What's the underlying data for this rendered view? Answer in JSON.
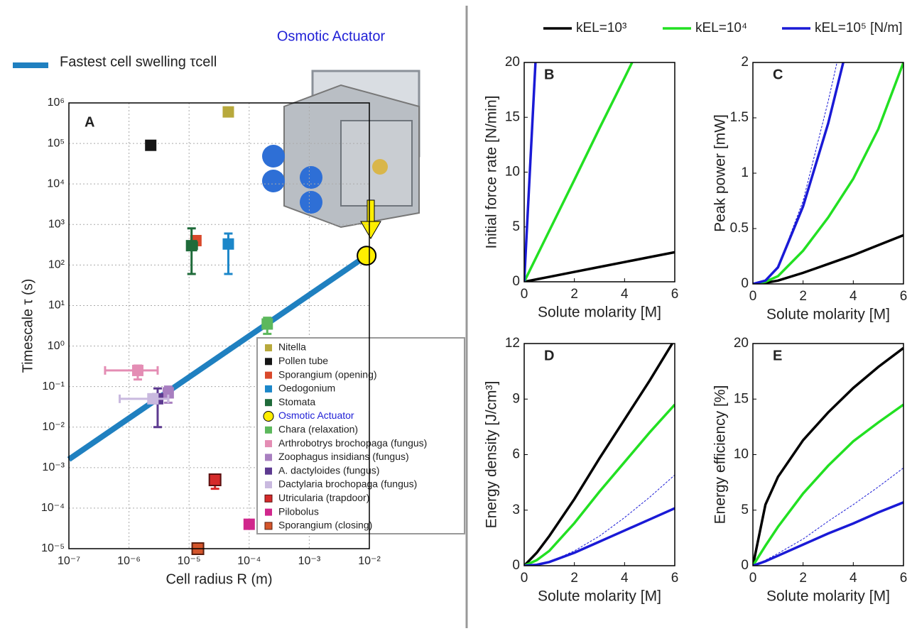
{
  "chart_data": [
    {
      "type": "scatter",
      "title": "A",
      "annotation": "Osmotic Actuator",
      "annotation_color": "#1f1fd6",
      "xlabel": "Cell radius R (m)",
      "ylabel": "Timescale τ (s)",
      "xscale": "log",
      "yscale": "log",
      "grid": true,
      "xlim": [
        1e-07,
        0.01
      ],
      "ylim": [
        1e-05,
        1000000.0
      ],
      "xticks": [
        {
          "value": 1e-07,
          "label": "10⁻⁷"
        },
        {
          "value": 1e-06,
          "label": "10⁻⁶"
        },
        {
          "value": 1e-05,
          "label": "10⁻⁵"
        },
        {
          "value": 0.0001,
          "label": "10⁻⁴"
        },
        {
          "value": 0.001,
          "label": "10⁻³"
        },
        {
          "value": 0.01,
          "label": "10⁻²"
        }
      ],
      "yticks": [
        {
          "value": 1e-05,
          "label": "10⁻⁵"
        },
        {
          "value": 0.0001,
          "label": "10⁻⁴"
        },
        {
          "value": 0.001,
          "label": "10⁻³"
        },
        {
          "value": 0.01,
          "label": "10⁻²"
        },
        {
          "value": 0.1,
          "label": "10⁻¹"
        },
        {
          "value": 1,
          "label": "10⁰"
        },
        {
          "value": 10,
          "label": "10¹"
        },
        {
          "value": 100,
          "label": "10²"
        },
        {
          "value": 1000,
          "label": "10³"
        },
        {
          "value": 10000,
          "label": "10⁴"
        },
        {
          "value": 100000,
          "label": "10⁵"
        },
        {
          "value": 1000000,
          "label": "10⁶"
        }
      ],
      "series": [
        {
          "name": "Nitella",
          "color": "#b8a93c",
          "marker": "square",
          "x": [
            4.5e-05
          ],
          "values": [
            600000
          ]
        },
        {
          "name": "Pollen tube",
          "color": "#151515",
          "marker": "square",
          "x": [
            2.3e-06
          ],
          "values": [
            90000
          ]
        },
        {
          "name": "Sporangium (opening)",
          "color": "#d9492b",
          "marker": "square",
          "x": [
            1.3e-05
          ],
          "values": [
            400
          ]
        },
        {
          "name": "Oedogonium",
          "color": "#1c87c9",
          "marker": "square",
          "x": [
            4.5e-05
          ],
          "values": [
            330
          ],
          "y_low": [
            60
          ],
          "y_high": [
            600
          ]
        },
        {
          "name": "Stomata",
          "color": "#1f6b3a",
          "marker": "square",
          "x": [
            1.1e-05
          ],
          "values": [
            300
          ],
          "y_low": [
            60
          ],
          "y_high": [
            800
          ],
          "x_low": [
            9.5e-06
          ],
          "x_high": [
            1.35e-05
          ]
        },
        {
          "name": "Osmotic Actuator",
          "color": "#ffee00",
          "edgecolor": "#000000",
          "text_color": "#1f1fd6",
          "marker": "circle",
          "x": [
            0.009
          ],
          "values": [
            170
          ]
        },
        {
          "name": "Chara (relaxation)",
          "color": "#5cb85c",
          "marker": "square",
          "x": [
            0.0002
          ],
          "values": [
            3.5
          ],
          "y_low": [
            2
          ],
          "y_high": [
            5
          ]
        },
        {
          "name": "Arthrobotrys brochopaga (fungus)",
          "color": "#e48db4",
          "marker": "square",
          "x": [
            1.4e-06
          ],
          "values": [
            0.25
          ],
          "y_low": [
            0.15
          ],
          "y_high": [
            0.33
          ],
          "x_low": [
            4e-07
          ],
          "x_high": [
            3e-06
          ]
        },
        {
          "name": "Zoophagus insidians (fungus)",
          "color": "#a87fc0",
          "marker": "square",
          "x": [
            4.5e-06
          ],
          "values": [
            0.07
          ],
          "y_low": [
            0.04
          ],
          "y_high": [
            0.1
          ]
        },
        {
          "name": "A. dactyloides (fungus)",
          "color": "#5d3a90",
          "marker": "square",
          "x": [
            3e-06
          ],
          "values": [
            0.05
          ],
          "y_low": [
            0.01
          ],
          "y_high": [
            0.09
          ]
        },
        {
          "name": "Dactylaria brochopaga (fungus)",
          "color": "#c9b9df",
          "marker": "square",
          "x": [
            2.5e-06
          ],
          "values": [
            0.05
          ],
          "x_low": [
            7e-07
          ],
          "x_high": [
            4.5e-06
          ]
        },
        {
          "name": "Utricularia (trapdoor)",
          "color": "#d52a2a",
          "edgecolor": "#5a1010",
          "marker": "square",
          "x": [
            2.7e-05
          ],
          "values": [
            0.0005
          ],
          "y_low": [
            0.0003
          ],
          "y_high": [
            0.0006
          ]
        },
        {
          "name": "Pilobolus",
          "color": "#d0278c",
          "marker": "square",
          "x": [
            0.0001
          ],
          "values": [
            4e-05
          ]
        },
        {
          "name": "Sporangium (closing)",
          "color": "#d4552b",
          "edgecolor": "#5a2010",
          "marker": "square",
          "x": [
            1.4e-05
          ],
          "values": [
            1e-05
          ]
        },
        {
          "name": "Fastest cell swelling τcell",
          "color": "#1f80c0",
          "marker": "line",
          "x": [
            1e-07,
            0.009
          ],
          "values": [
            0.0016,
            170
          ]
        }
      ]
    },
    {
      "type": "line",
      "title": "B",
      "legend": "top",
      "xlabel": "Solute molarity [M]",
      "ylabel": "Initial force rate [N/min]",
      "xlim": [
        0,
        6
      ],
      "ylim": [
        0,
        20
      ],
      "xticks": [
        0,
        2,
        4,
        6
      ],
      "yticks": [
        0,
        5,
        10,
        15,
        20
      ],
      "series": [
        {
          "name": "kEL=10³",
          "color": "#000000",
          "x": [
            0,
            1,
            2,
            3,
            4,
            5,
            6
          ],
          "values": [
            0,
            0.45,
            0.9,
            1.35,
            1.8,
            2.25,
            2.7
          ]
        },
        {
          "name": "kEL=10⁴",
          "color": "#22e022",
          "x": [
            0,
            1,
            2,
            3,
            4,
            4.3
          ],
          "values": [
            0,
            4.65,
            9.3,
            14,
            18.6,
            20
          ]
        },
        {
          "name": "kEL=10⁵ [N/m]",
          "color": "#1a1ad6",
          "x": [
            0,
            0.45
          ],
          "values": [
            0,
            20
          ]
        }
      ]
    },
    {
      "type": "line",
      "title": "C",
      "xlabel": "Solute molarity [M]",
      "ylabel": "Peak power [mW]",
      "xlim": [
        0,
        6
      ],
      "ylim": [
        0,
        2
      ],
      "xticks": [
        0,
        2,
        4,
        6
      ],
      "yticks": [
        0,
        0.5,
        1,
        1.5,
        2
      ],
      "series": [
        {
          "color": "#000000",
          "x": [
            0,
            0.5,
            1,
            2,
            3,
            4,
            5,
            6
          ],
          "values": [
            0,
            0.01,
            0.03,
            0.1,
            0.18,
            0.26,
            0.35,
            0.44
          ]
        },
        {
          "color": "#22e022",
          "x": [
            0,
            0.5,
            1,
            2,
            3,
            4,
            5,
            6
          ],
          "values": [
            0,
            0.02,
            0.07,
            0.3,
            0.6,
            0.95,
            1.4,
            2
          ]
        },
        {
          "color": "#1a1ad6",
          "x": [
            0,
            0.5,
            1,
            2,
            3,
            3.6
          ],
          "values": [
            0,
            0.03,
            0.15,
            0.7,
            1.45,
            2
          ]
        },
        {
          "color": "#1a1ad6",
          "dashed": true,
          "x": [
            0,
            0.5,
            1,
            2,
            3,
            3.35
          ],
          "values": [
            0,
            0.03,
            0.15,
            0.75,
            1.65,
            2
          ]
        }
      ]
    },
    {
      "type": "line",
      "title": "D",
      "xlabel": "Solute molarity [M]",
      "ylabel": "Energy density [J/cm³]",
      "xlim": [
        0,
        6
      ],
      "ylim": [
        0,
        12
      ],
      "xticks": [
        0,
        2,
        4,
        6
      ],
      "yticks": [
        0,
        3,
        6,
        9,
        12
      ],
      "series": [
        {
          "color": "#000000",
          "x": [
            0,
            0.5,
            1,
            2,
            3,
            4,
            5,
            5.9
          ],
          "values": [
            0,
            0.7,
            1.6,
            3.6,
            5.8,
            7.9,
            10,
            12
          ]
        },
        {
          "color": "#22e022",
          "x": [
            0,
            0.5,
            1,
            2,
            3,
            4,
            5,
            6
          ],
          "values": [
            0,
            0.3,
            0.8,
            2.3,
            4,
            5.6,
            7.2,
            8.7
          ]
        },
        {
          "color": "#1a1ad6",
          "x": [
            0,
            0.5,
            1,
            2,
            3,
            4,
            5,
            6
          ],
          "values": [
            0,
            0.05,
            0.2,
            0.7,
            1.3,
            1.9,
            2.5,
            3.1
          ]
        },
        {
          "color": "#1a1ad6",
          "dashed": true,
          "x": [
            0,
            0.5,
            1,
            2,
            3,
            4,
            5,
            6
          ],
          "values": [
            0,
            0.05,
            0.2,
            0.8,
            1.6,
            2.6,
            3.7,
            4.9
          ]
        }
      ]
    },
    {
      "type": "line",
      "title": "E",
      "xlabel": "Solute molarity [M]",
      "ylabel": "Energy efficiency [%]",
      "xlim": [
        0,
        6
      ],
      "ylim": [
        0,
        20
      ],
      "xticks": [
        0,
        2,
        4,
        6
      ],
      "yticks": [
        0,
        5,
        10,
        15,
        20
      ],
      "series": [
        {
          "color": "#000000",
          "x": [
            0,
            0.5,
            1,
            2,
            3,
            4,
            5,
            6
          ],
          "values": [
            0,
            5.5,
            8,
            11.3,
            13.8,
            16,
            17.9,
            19.6
          ]
        },
        {
          "color": "#22e022",
          "x": [
            0,
            0.5,
            1,
            2,
            3,
            4,
            5,
            6
          ],
          "values": [
            0,
            1.8,
            3.5,
            6.5,
            9,
            11.2,
            12.9,
            14.5
          ]
        },
        {
          "color": "#1a1ad6",
          "x": [
            0,
            0.5,
            1,
            2,
            3,
            4,
            5,
            6
          ],
          "values": [
            0,
            0.4,
            0.9,
            1.9,
            2.9,
            3.8,
            4.8,
            5.7
          ]
        },
        {
          "color": "#1a1ad6",
          "dashed": true,
          "x": [
            0,
            0.5,
            1,
            2,
            3,
            4,
            5,
            6
          ],
          "values": [
            0,
            0.5,
            1.1,
            2.4,
            4,
            5.5,
            7.1,
            8.8
          ]
        }
      ]
    }
  ]
}
